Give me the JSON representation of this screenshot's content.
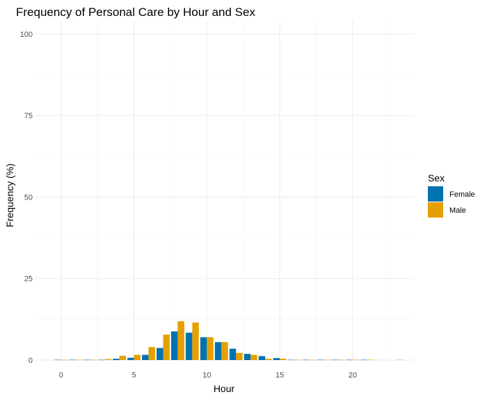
{
  "chart_data": {
    "type": "bar",
    "title": "Frequency of Personal Care by Hour and Sex",
    "xlabel": "Hour",
    "ylabel": "Frequency (%)",
    "xlim": [
      -1.8,
      24.2
    ],
    "ylim": [
      0,
      104
    ],
    "x_ticks": [
      0,
      5,
      10,
      15,
      20
    ],
    "y_ticks": [
      0,
      25,
      50,
      75,
      100
    ],
    "grid": true,
    "legend": {
      "title": "Sex",
      "position": "right"
    },
    "x": [
      0,
      1,
      2,
      3,
      4,
      5,
      6,
      7,
      8,
      9,
      10,
      11,
      12,
      13,
      14,
      15,
      16,
      17,
      18,
      19,
      20,
      21,
      22,
      23
    ],
    "series": [
      {
        "name": "Female",
        "color": "#0072B2",
        "values": [
          0.1,
          0.1,
          0.1,
          0.1,
          0.4,
          0.7,
          1.6,
          3.7,
          8.8,
          8.4,
          7.0,
          5.5,
          3.5,
          1.9,
          1.2,
          0.6,
          0.1,
          0.1,
          0.1,
          0.1,
          0.1,
          0.1,
          0,
          0
        ]
      },
      {
        "name": "Male",
        "color": "#E69F00",
        "values": [
          0.1,
          0.1,
          0.1,
          0.3,
          1.3,
          1.6,
          4.0,
          7.8,
          11.9,
          11.5,
          7.0,
          5.5,
          2.2,
          1.6,
          0.4,
          0.4,
          0.1,
          0.1,
          0.1,
          0.1,
          0.1,
          0.1,
          0,
          0.1
        ]
      }
    ]
  }
}
